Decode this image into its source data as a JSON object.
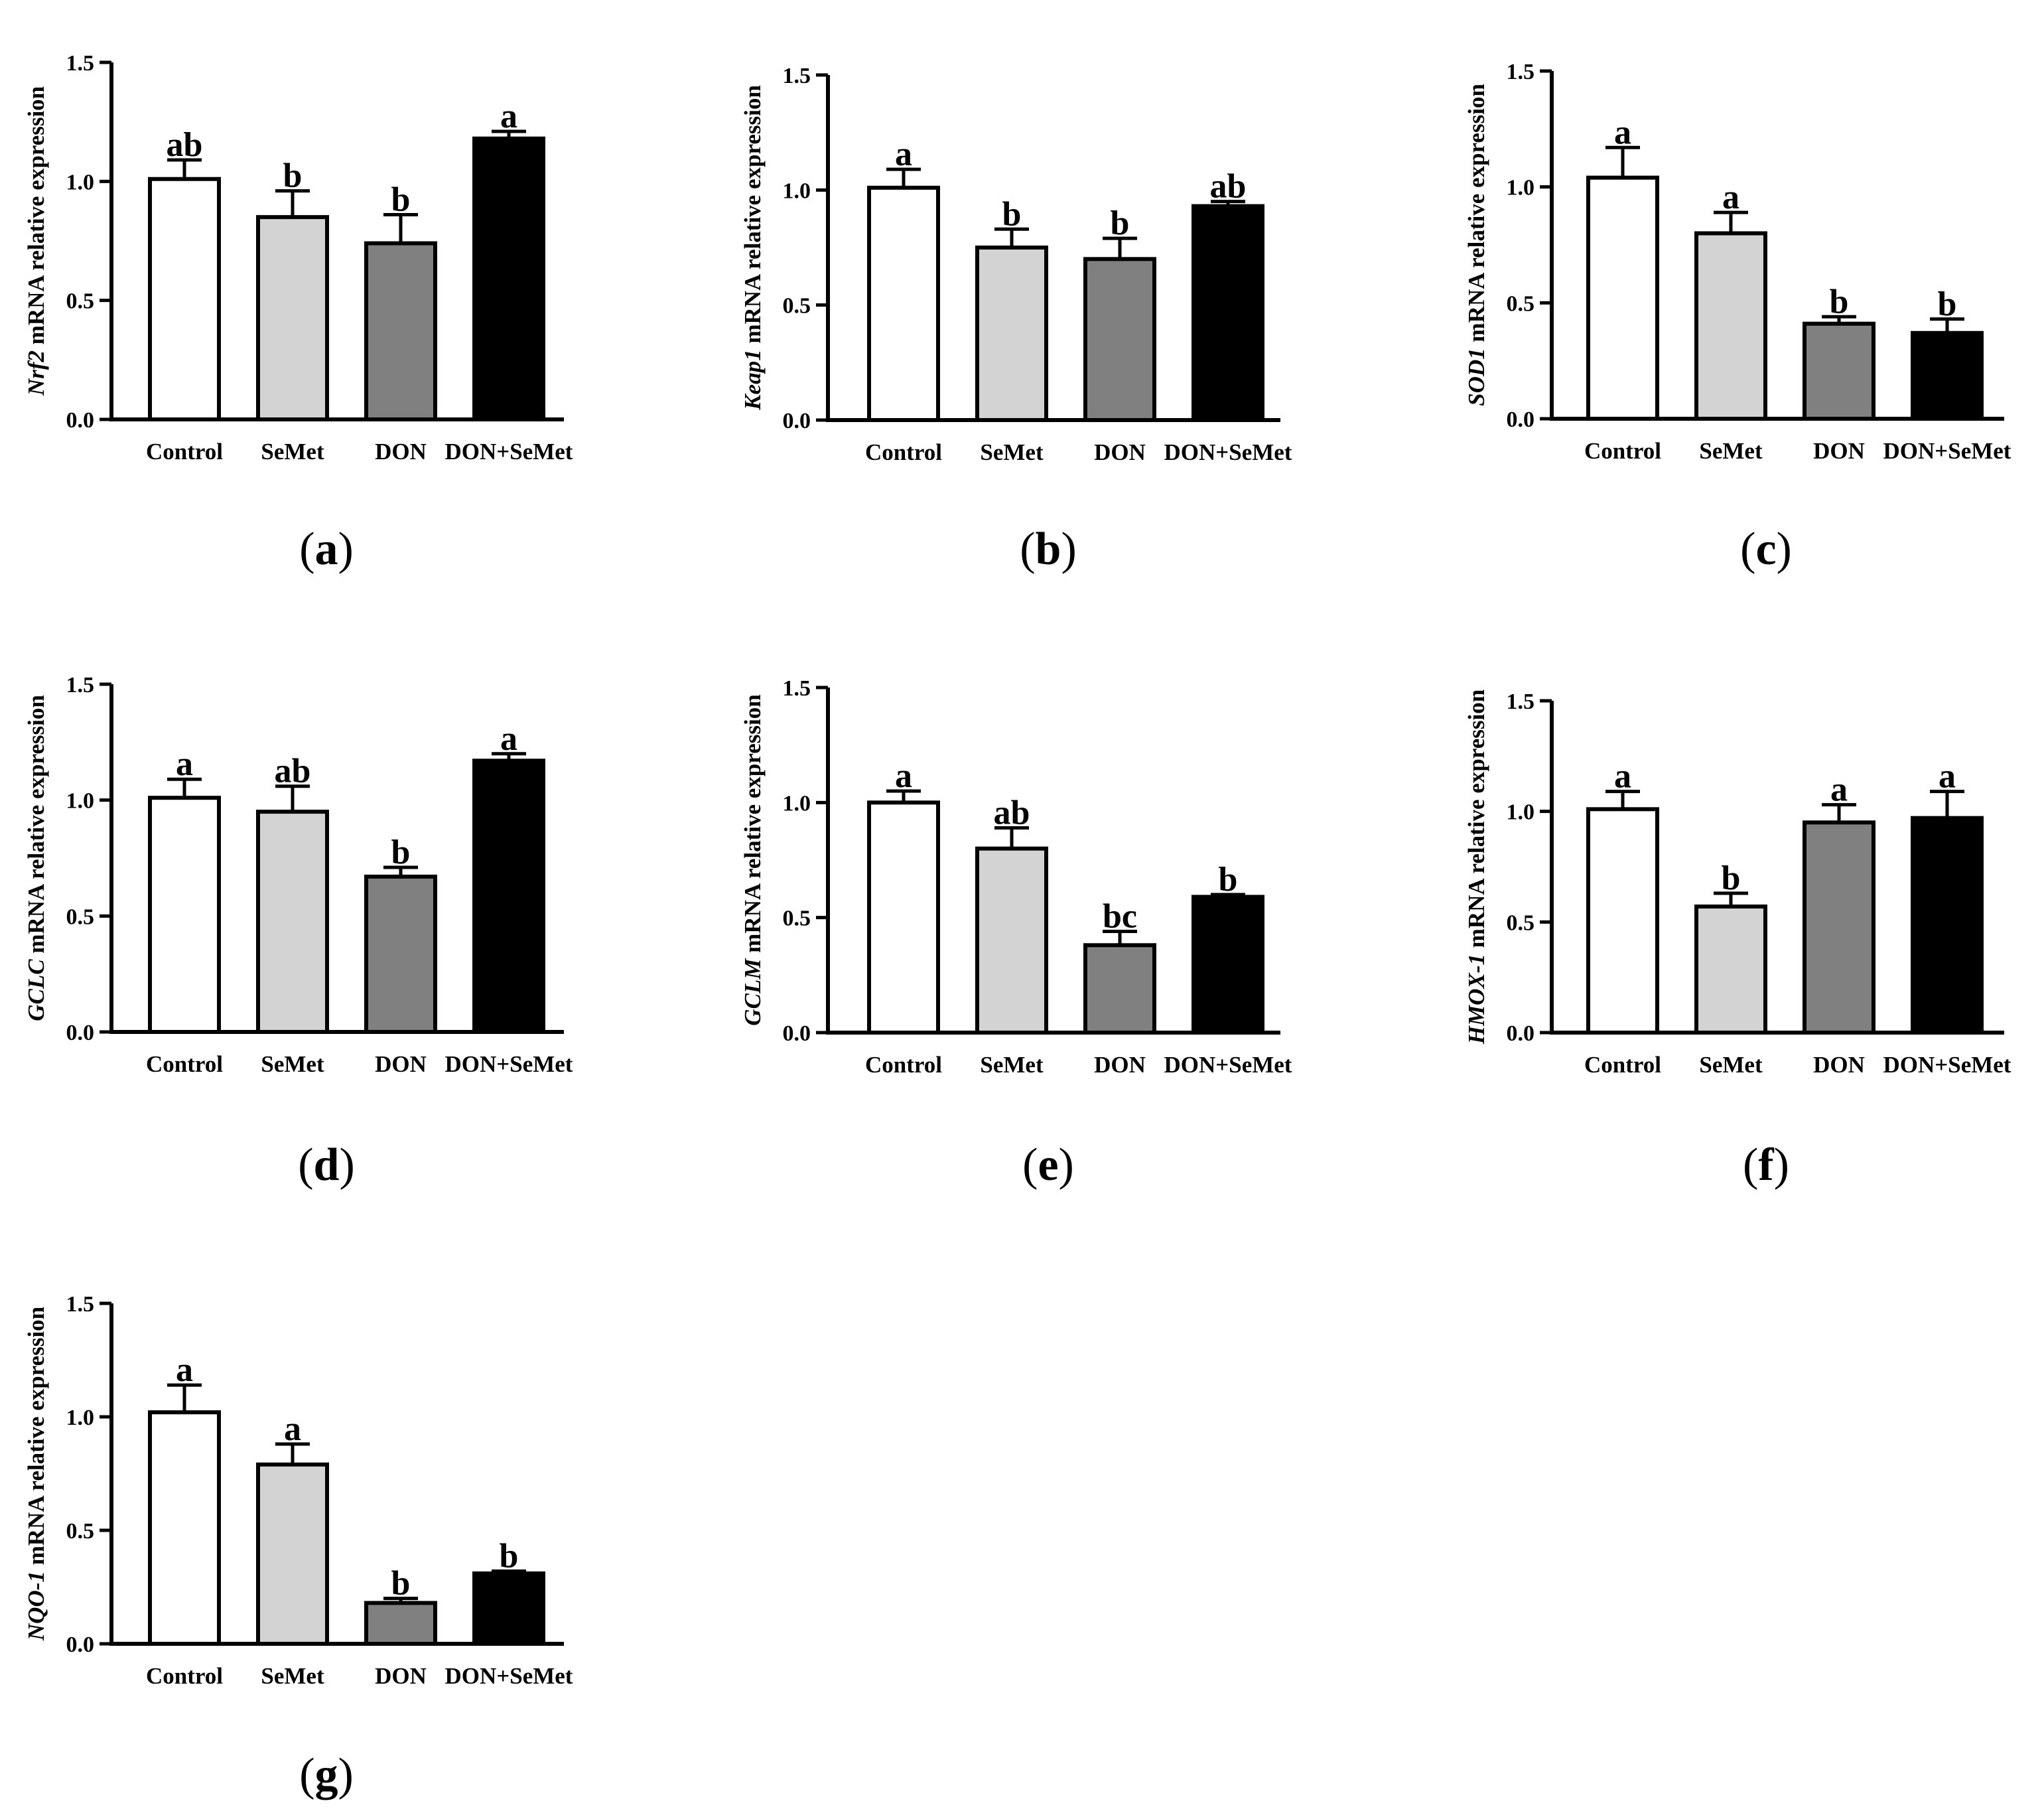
{
  "figure": {
    "group_colors": [
      "#ffffff",
      "#d3d3d3",
      "#808080",
      "#000000"
    ],
    "y_axis_suffix": "mRNA relative expression"
  },
  "chart_data": [
    {
      "type": "bar",
      "panel": "a",
      "gene": "Nrf2",
      "ylabel": "Nrf2 mRNA relative expression",
      "categories": [
        "Control",
        "SeMet",
        "DON",
        "DON+SeMet"
      ],
      "values": [
        1.01,
        0.85,
        0.74,
        1.18
      ],
      "errors": [
        0.08,
        0.11,
        0.12,
        0.03
      ],
      "significance": [
        "ab",
        "b",
        "b",
        "a"
      ],
      "ylim": [
        0,
        1.5
      ],
      "yticks": [
        "0.0",
        "0.5",
        "1.0",
        "1.5"
      ]
    },
    {
      "type": "bar",
      "panel": "b",
      "gene": "Keap1",
      "ylabel": "Keap1 mRNA relative expression",
      "categories": [
        "Control",
        "SeMet",
        "DON",
        "DON+SeMet"
      ],
      "values": [
        1.01,
        0.75,
        0.7,
        0.93
      ],
      "errors": [
        0.08,
        0.08,
        0.09,
        0.02
      ],
      "significance": [
        "a",
        "b",
        "b",
        "ab"
      ],
      "ylim": [
        0,
        1.5
      ],
      "yticks": [
        "0.0",
        "0.5",
        "1.0",
        "1.5"
      ]
    },
    {
      "type": "bar",
      "panel": "c",
      "gene": "SOD1",
      "ylabel": "SOD1 mRNA relative expression",
      "categories": [
        "Control",
        "SeMet",
        "DON",
        "DON+SeMet"
      ],
      "values": [
        1.04,
        0.8,
        0.41,
        0.37
      ],
      "errors": [
        0.13,
        0.09,
        0.03,
        0.06
      ],
      "significance": [
        "a",
        "a",
        "b",
        "b"
      ],
      "ylim": [
        0,
        1.5
      ],
      "yticks": [
        "0.0",
        "0.5",
        "1.0",
        "1.5"
      ]
    },
    {
      "type": "bar",
      "panel": "d",
      "gene": "GCLC",
      "ylabel": "GCLC mRNA relative expression",
      "categories": [
        "Control",
        "SeMet",
        "DON",
        "DON+SeMet"
      ],
      "values": [
        1.01,
        0.95,
        0.67,
        1.17
      ],
      "errors": [
        0.08,
        0.11,
        0.04,
        0.03
      ],
      "significance": [
        "a",
        "ab",
        "b",
        "a"
      ],
      "ylim": [
        0,
        1.5
      ],
      "yticks": [
        "0.0",
        "0.5",
        "1.0",
        "1.5"
      ]
    },
    {
      "type": "bar",
      "panel": "e",
      "gene": "GCLM",
      "ylabel": "GCLM mRNA relative expression",
      "categories": [
        "Control",
        "SeMet",
        "DON",
        "DON+SeMet"
      ],
      "values": [
        1.0,
        0.8,
        0.38,
        0.59
      ],
      "errors": [
        0.05,
        0.09,
        0.06,
        0.01
      ],
      "significance": [
        "a",
        "ab",
        "bc",
        "b"
      ],
      "ylim": [
        0,
        1.5
      ],
      "yticks": [
        "0.0",
        "0.5",
        "1.0",
        "1.5"
      ]
    },
    {
      "type": "bar",
      "panel": "f",
      "gene": "HMOX-1",
      "ylabel": "HMOX-1 mRNA relative expression",
      "categories": [
        "Control",
        "SeMet",
        "DON",
        "DON+SeMet"
      ],
      "values": [
        1.01,
        0.57,
        0.95,
        0.97
      ],
      "errors": [
        0.08,
        0.06,
        0.08,
        0.12
      ],
      "significance": [
        "a",
        "b",
        "a",
        "a"
      ],
      "ylim": [
        0,
        1.5
      ],
      "yticks": [
        "0.0",
        "0.5",
        "1.0",
        "1.5"
      ]
    },
    {
      "type": "bar",
      "panel": "g",
      "gene": "NQO-1",
      "ylabel": "NQO-1 mRNA relative expression",
      "categories": [
        "Control",
        "SeMet",
        "DON",
        "DON+SeMet"
      ],
      "values": [
        1.02,
        0.79,
        0.18,
        0.31
      ],
      "errors": [
        0.12,
        0.09,
        0.02,
        0.01
      ],
      "significance": [
        "a",
        "a",
        "b",
        "b"
      ],
      "ylim": [
        0,
        1.5
      ],
      "yticks": [
        "0.0",
        "0.5",
        "1.0",
        "1.5"
      ]
    }
  ]
}
